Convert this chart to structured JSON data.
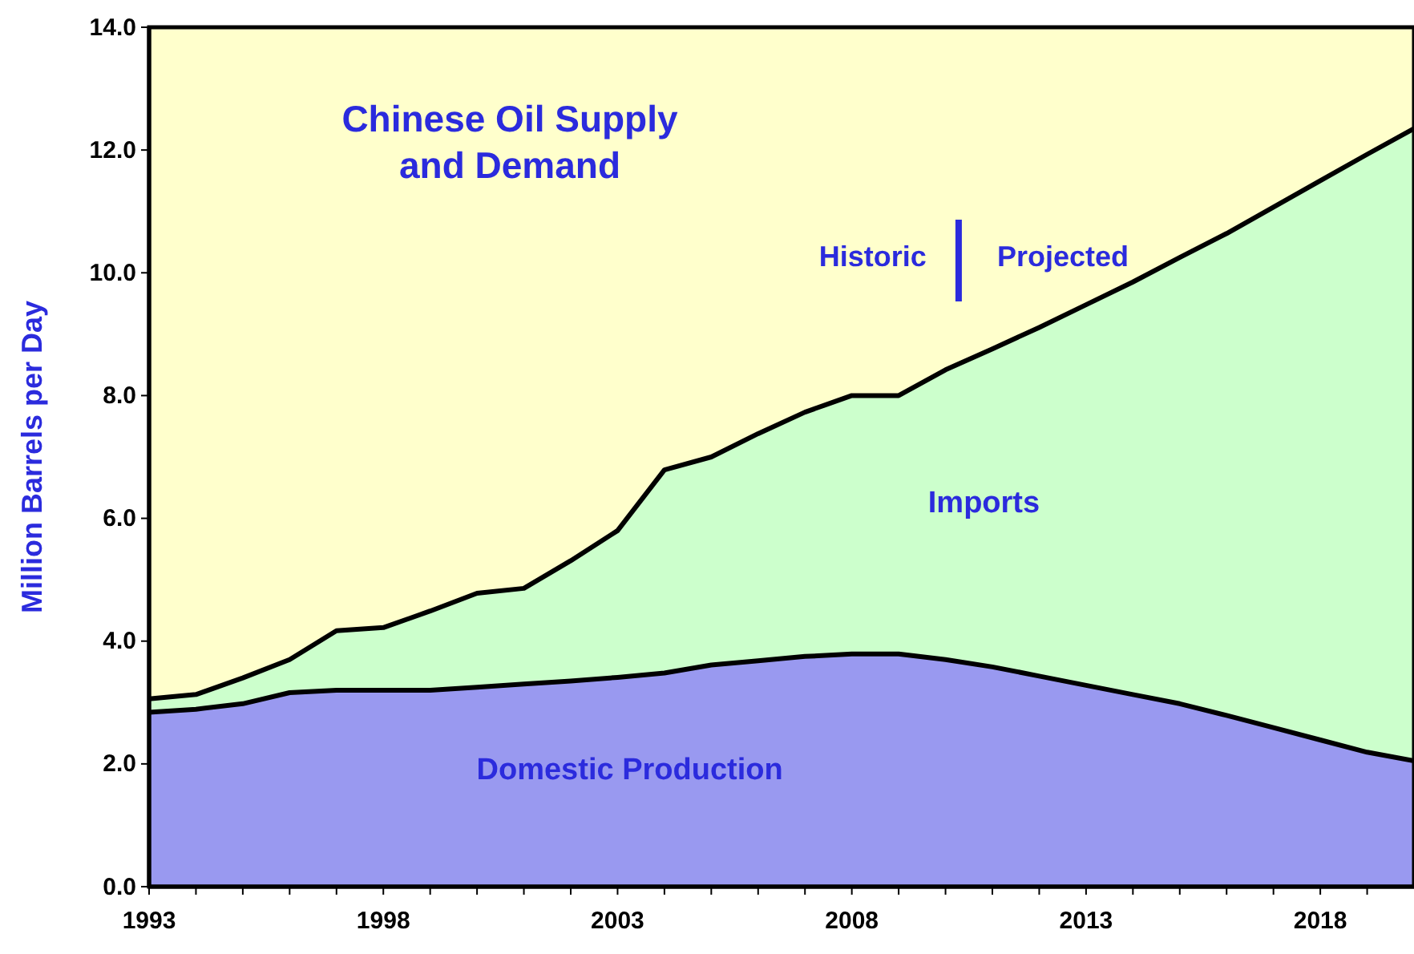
{
  "chart_data": {
    "type": "area",
    "stacked": true,
    "title": "Chinese Oil Supply and Demand",
    "ylabel": "Million Barrels per Day",
    "x": [
      1993,
      1994,
      1995,
      1996,
      1997,
      1998,
      1999,
      2000,
      2001,
      2002,
      2003,
      2004,
      2005,
      2006,
      2007,
      2008,
      2009,
      2010,
      2011,
      2012,
      2013,
      2014,
      2015,
      2016,
      2017,
      2018,
      2019,
      2020
    ],
    "series": [
      {
        "name": "Domestic Production",
        "color": "#9999f0",
        "values": [
          2.84,
          2.89,
          2.98,
          3.16,
          3.2,
          3.2,
          3.2,
          3.25,
          3.3,
          3.35,
          3.41,
          3.48,
          3.61,
          3.68,
          3.75,
          3.79,
          3.79,
          3.7,
          3.58,
          3.43,
          3.28,
          3.13,
          2.98,
          2.79,
          2.59,
          2.39,
          2.19,
          2.05
        ]
      },
      {
        "name": "Imports",
        "color": "#ccffcc",
        "values": [
          0.22,
          0.24,
          0.42,
          0.54,
          0.97,
          1.02,
          1.29,
          1.53,
          1.56,
          1.96,
          2.39,
          3.31,
          3.39,
          3.7,
          3.98,
          4.21,
          4.21,
          4.72,
          5.18,
          5.68,
          6.2,
          6.72,
          7.27,
          7.85,
          8.48,
          9.11,
          9.74,
          10.3
        ]
      }
    ],
    "xlim": [
      1993,
      2020
    ],
    "xticks": [
      1993,
      {
        "value": 1994,
        "label": null
      },
      {
        "value": 1995,
        "label": null
      },
      {
        "value": 1996,
        "label": null
      },
      {
        "value": 1997,
        "label": null
      },
      1998,
      {
        "value": 1999,
        "label": null
      },
      {
        "value": 2000,
        "label": null
      },
      {
        "value": 2001,
        "label": null
      },
      {
        "value": 2002,
        "label": null
      },
      2003,
      {
        "value": 2004,
        "label": null
      },
      {
        "value": 2005,
        "label": null
      },
      {
        "value": 2006,
        "label": null
      },
      {
        "value": 2007,
        "label": null
      },
      2008,
      {
        "value": 2009,
        "label": null
      },
      {
        "value": 2010,
        "label": null
      },
      {
        "value": 2011,
        "label": null
      },
      {
        "value": 2012,
        "label": null
      },
      2013,
      {
        "value": 2014,
        "label": null
      },
      {
        "value": 2015,
        "label": null
      },
      {
        "value": 2016,
        "label": null
      },
      {
        "value": 2017,
        "label": null
      },
      2018,
      {
        "value": 2019,
        "label": null
      }
    ],
    "ylim": [
      0,
      14
    ],
    "yticks": [
      {
        "value": 0,
        "label": "0.0"
      },
      {
        "value": 2,
        "label": "2.0"
      },
      {
        "value": 4,
        "label": "4.0"
      },
      {
        "value": 6,
        "label": "6.0"
      },
      {
        "value": 8,
        "label": "8.0"
      },
      {
        "value": 10,
        "label": "10.0"
      },
      {
        "value": 12,
        "label": "12.0"
      },
      {
        "value": 14,
        "label": "14.0"
      }
    ],
    "annotations": [
      "Historic",
      "Projected"
    ]
  }
}
